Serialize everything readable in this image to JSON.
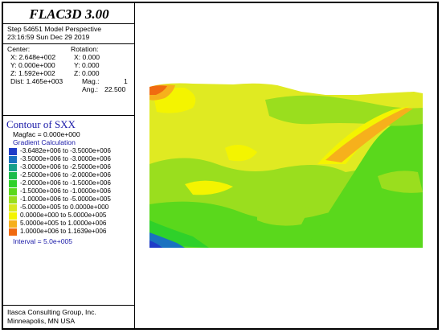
{
  "panel": {
    "title": "FLAC3D 3.00",
    "step_line": "Step 54651  Model Perspective",
    "date_line": "23:16:59 Sun Dec 29 2019",
    "center_label": "Center:",
    "rotation_label": "Rotation:",
    "center": [
      "X: 2.648e+002",
      "Y: 0.000e+000",
      "Z: 1.592e+002",
      "Dist: 1.465e+003"
    ],
    "rotation": [
      "X:   0.000",
      "Y:   0.000",
      "Z:   0.000"
    ],
    "mag_label": "Mag.:",
    "mag_value": "1",
    "ang_label": "Ang.:",
    "ang_value": "22.500",
    "contour_title": "Contour of SXX",
    "magfac": "Magfac =  0.000e+000",
    "gradient": "Gradient Calculation",
    "interval": "Interval =  5.0e+005",
    "company": "Itasca Consulting Group, Inc.",
    "city": "Minneapolis, MN  USA"
  },
  "legend": [
    {
      "label": "-3.6482e+006 to -3.5000e+006",
      "color": "#1f3cc8"
    },
    {
      "label": "-3.5000e+006 to -3.0000e+006",
      "color": "#1a72c0"
    },
    {
      "label": "-3.0000e+006 to -2.5000e+006",
      "color": "#17a08a"
    },
    {
      "label": "-2.5000e+006 to -2.0000e+006",
      "color": "#1cbc4a"
    },
    {
      "label": "-2.0000e+006 to -1.5000e+006",
      "color": "#2fd12a"
    },
    {
      "label": "-1.5000e+006 to -1.0000e+006",
      "color": "#5ad81c"
    },
    {
      "label": "-1.0000e+006 to -5.0000e+005",
      "color": "#9ade1e"
    },
    {
      "label": "-5.0000e+005 to  0.0000e+000",
      "color": "#d8e820"
    },
    {
      "label": "0.0000e+000 to  5.0000e+005",
      "color": "#f4f400"
    },
    {
      "label": "5.0000e+005 to  1.0000e+006",
      "color": "#f6b01c"
    },
    {
      "label": "1.0000e+006 to  1.1639e+006",
      "color": "#f06a10"
    }
  ]
}
